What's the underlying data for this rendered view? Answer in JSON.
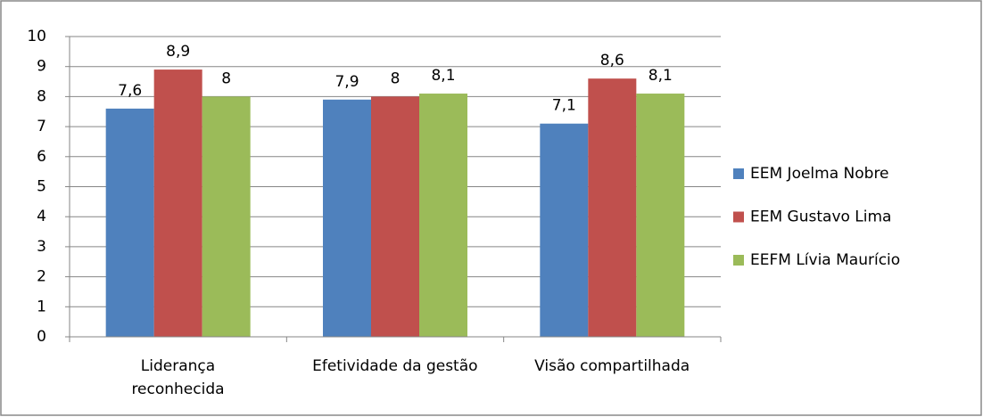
{
  "chart_data": {
    "type": "bar",
    "categories": [
      "Liderança\nreconhecida",
      "Efetividade da gestão",
      "Visão compartilhada"
    ],
    "series": [
      {
        "name": "EEM Joelma Nobre",
        "color": "#4f81bd",
        "values": [
          7.6,
          7.9,
          7.1
        ],
        "value_labels": [
          "7,6",
          "7,9",
          "7,1"
        ]
      },
      {
        "name": "EEM Gustavo Lima",
        "color": "#c0504d",
        "values": [
          8.9,
          8,
          8.6
        ],
        "value_labels": [
          "8,9",
          "8",
          "8,6"
        ]
      },
      {
        "name": "EEFM Lívia Maurício",
        "color": "#9bbb59",
        "values": [
          8,
          8.1,
          8.1
        ],
        "value_labels": [
          "8",
          "8,1",
          "8,1"
        ]
      }
    ],
    "ylim": [
      0,
      10
    ],
    "yticks": [
      0,
      1,
      2,
      3,
      4,
      5,
      6,
      7,
      8,
      9,
      10
    ],
    "grid": true,
    "legend": "right"
  }
}
